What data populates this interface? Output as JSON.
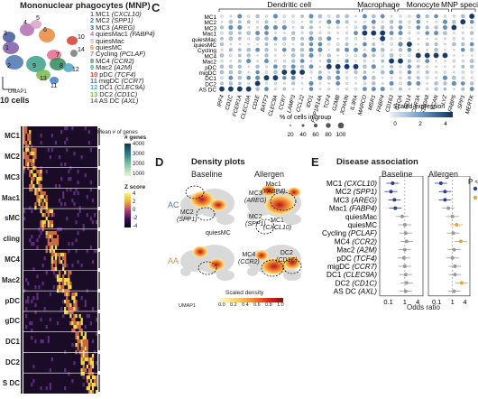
{
  "panel_a": {
    "title": "Mononuclear phagocytes (MNP)",
    "axis_label": "UMAP1",
    "cells_label": "10 cells",
    "legend": [
      {
        "num": "1",
        "name": "MC1",
        "gene": "CXCL10",
        "color": "#7b5aa6"
      },
      {
        "num": "2",
        "name": "MC2",
        "gene": "SPP1",
        "color": "#4a74b4"
      },
      {
        "num": "3",
        "name": "MC3",
        "gene": "AREG",
        "color": "#3f57a0"
      },
      {
        "num": "4",
        "name": "quiesMac1",
        "gene": "FABP4",
        "color": "#b26fb0"
      },
      {
        "num": "5",
        "name": "quiesMac",
        "gene": "",
        "color": "#d9a0c8"
      },
      {
        "num": "6",
        "name": "quiesMC",
        "gene": "",
        "color": "#e8883a"
      },
      {
        "num": "7",
        "name": "Cycling",
        "gene": "PCLAF",
        "color": "#e36c8d"
      },
      {
        "num": "8",
        "name": "MC4",
        "gene": "CCR2",
        "color": "#2f8a5a"
      },
      {
        "num": "9",
        "name": "Mac2",
        "gene": "A2M",
        "color": "#3aa08a"
      },
      {
        "num": "10",
        "name": "pDC",
        "gene": "TCF4",
        "color": "#d93a2f"
      },
      {
        "num": "11",
        "name": "migDC",
        "gene": "CCR7",
        "color": "#3c7dc4"
      },
      {
        "num": "12",
        "name": "DC1",
        "gene": "CLEC9A",
        "color": "#4fa6c9"
      },
      {
        "num": "13",
        "name": "DC2",
        "gene": "CD1C",
        "color": "#79b84e"
      },
      {
        "num": "14",
        "name": "AS DC",
        "gene": "AXL",
        "color": "#7a7a7a"
      }
    ],
    "umap_numbers": [
      "1",
      "2",
      "3",
      "4",
      "5",
      "6",
      "7",
      "8",
      "9",
      "10",
      "11",
      "12",
      "13",
      "14"
    ]
  },
  "panel_b": {
    "rows": [
      "MC1",
      "MC2",
      "MC3",
      "Mac1",
      "sMC",
      "cling",
      "MC4",
      "Mac2",
      "pDC",
      "gDC",
      "DC1",
      "DC2",
      "S DC"
    ],
    "legend_genes_title": "Mean # of genes",
    "genes_title": "# genes",
    "genes_ticks": [
      "4000",
      "3000",
      "2000",
      "1000"
    ],
    "z_title": "Z score",
    "z_ticks": [
      "4",
      "2",
      "0",
      "-2",
      "-4"
    ]
  },
  "panel_c": {
    "letter": "C",
    "groups": [
      "Dendritic cell",
      "Macrophage",
      "Monocyte",
      "MNP speciali"
    ],
    "rows": [
      "MC1",
      "MC2",
      "MC3",
      "Mac1",
      "quiesMac",
      "quiesMC",
      "Cycling",
      "MC4",
      "Mac2",
      "pDC",
      "migDC",
      "DC1",
      "DC2",
      "AS DC"
    ],
    "genes": [
      "IRF4",
      "CD1C",
      "FCER1A",
      "CLEC10A",
      "CD1E",
      "BATF3",
      "CLEC9A",
      "CCR7",
      "LAMP3",
      "CCL22",
      "IDO1",
      "PPP1R14A",
      "TCF4",
      "GZMB",
      "JCHAIN",
      "IL3RA",
      "MARCO",
      "MSR1",
      "FABP4",
      "CD163",
      "C1QA",
      "CD14",
      "FCGR3A",
      "S100A8",
      "VCAN",
      "LYZ",
      "FABP5",
      "SPP1",
      "MERTK"
    ],
    "pct_title": "% of cells in group",
    "pct_ticks": [
      "20",
      "40",
      "60",
      "80",
      "100"
    ],
    "expr_title": "Scaled expression",
    "expr_ticks": [
      "0",
      "2",
      "4"
    ]
  },
  "panel_d": {
    "letter": "D",
    "title": "Density plots",
    "col_baseline": "Baseline",
    "col_allergen": "Allergen",
    "row_ac": "AC",
    "row_aa": "AA",
    "axis_label": "UMAP1",
    "labels": [
      {
        "name": "MC3",
        "gene": "AREG"
      },
      {
        "name": "Mac1",
        "gene": "FABP4"
      },
      {
        "name": "MC2",
        "gene": "SPP1"
      },
      {
        "name": "MC2",
        "gene": "SPP1"
      },
      {
        "name": "MC1",
        "gene": "CXCL10"
      },
      {
        "name": "quiesMC",
        "gene": ""
      },
      {
        "name": "DC2",
        "gene": "CD1C"
      },
      {
        "name": "MC4",
        "gene": "CCR2"
      }
    ],
    "scale_title": "Scaled density",
    "scale_ticks": [
      "0.0",
      "0.2",
      "0.4",
      "0.6",
      "0.8",
      "1.0"
    ]
  },
  "panel_e": {
    "letter": "E",
    "title": "Disease association",
    "col_baseline": "Baseline",
    "col_allergen": "Allergen",
    "p_label": "P <",
    "rows": [
      {
        "name": "MC1",
        "gene": "CXCL10"
      },
      {
        "name": "MC2",
        "gene": "SPP1"
      },
      {
        "name": "MC3",
        "gene": "AREG"
      },
      {
        "name": "Mac1",
        "gene": "FABP4"
      },
      {
        "name": "quiesMac",
        "gene": ""
      },
      {
        "name": "quiesMC",
        "gene": ""
      },
      {
        "name": "Cycling",
        "gene": "PCLAF"
      },
      {
        "name": "MC4",
        "gene": "CCR2"
      },
      {
        "name": "Mac2",
        "gene": "A2M"
      },
      {
        "name": "pDC",
        "gene": "TCF4"
      },
      {
        "name": "migDC",
        "gene": "CCR7"
      },
      {
        "name": "DC1",
        "gene": "CLEC9A"
      },
      {
        "name": "DC2",
        "gene": "CD1C"
      },
      {
        "name": "AS DC",
        "gene": "AXL"
      }
    ],
    "ticks_left": [
      "0.1",
      "1",
      "4"
    ],
    "ticks_right": [
      "0.1",
      "1",
      "4"
    ],
    "xlabel": "Odds ratio",
    "colors": {
      "blue": "#2c3e8c",
      "orange": "#e8a23a"
    }
  }
}
